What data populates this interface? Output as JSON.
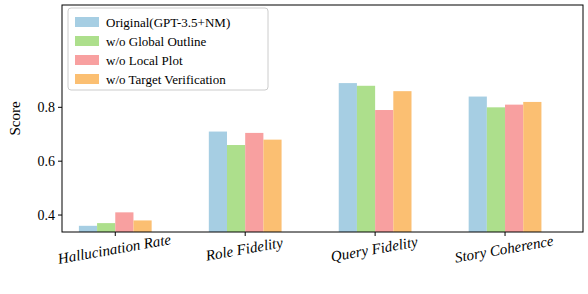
{
  "chart_data": {
    "type": "bar",
    "y_label": "Score",
    "categories": [
      "Hallucination Rate",
      "Role Fidelity",
      "Query Fidelity",
      "Story Coherence"
    ],
    "series": [
      {
        "name": "Original(GPT-3.5+NM)",
        "color": "#a6cee3",
        "values": [
          0.36,
          0.71,
          0.89,
          0.84
        ]
      },
      {
        "name": "w/o Global Outline",
        "color": "#addf8c",
        "values": [
          0.37,
          0.66,
          0.88,
          0.8
        ]
      },
      {
        "name": "w/o Local Plot",
        "color": "#f8a0a0",
        "values": [
          0.41,
          0.705,
          0.79,
          0.81
        ]
      },
      {
        "name": "w/o Target Verification",
        "color": "#fbbf72",
        "values": [
          0.38,
          0.68,
          0.86,
          0.82
        ]
      }
    ],
    "ylim": [
      0.337,
      1.18
    ],
    "yticks": [
      0.4,
      0.6,
      0.8
    ],
    "grid": false,
    "legend": "upper-left"
  }
}
